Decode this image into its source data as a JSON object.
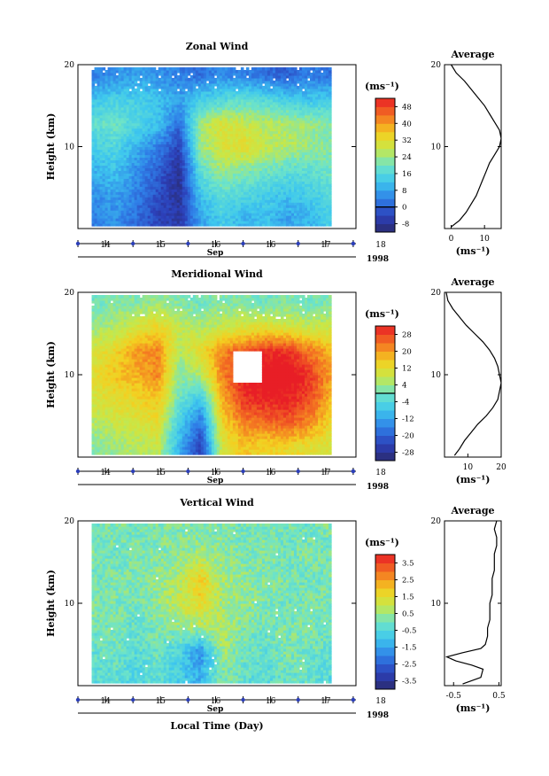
{
  "figure": {
    "x_axis_title": "Local Time (Day)",
    "x_month_label": "Sep",
    "year_label": "1998"
  },
  "chart_data": [
    {
      "type": "heatmap",
      "title": "Zonal Wind",
      "ylabel": "Height (km)",
      "ylim": [
        0,
        20
      ],
      "yticks": [
        {
          "v": 10,
          "t": "10"
        },
        {
          "v": 20,
          "t": "20"
        }
      ],
      "x_tick_labels": [
        "14",
        "15",
        "16",
        "16",
        "17",
        "18"
      ],
      "data_xlim": [
        13.75,
        18.1
      ],
      "colorbar_unit": "(ms⁻¹)",
      "colorbar_ticks": [
        "48",
        "40",
        "32",
        "24",
        "16",
        "8",
        "0",
        "-8"
      ],
      "colorbar_range": [
        -12,
        52
      ],
      "zero_line_value": 0,
      "field": {
        "base": 12,
        "rows": [
          {
            "h": 1,
            "v": [
              4,
              6,
              2,
              -4,
              -6,
              8,
              14,
              10,
              12,
              8,
              10,
              14
            ]
          },
          {
            "h": 4,
            "v": [
              6,
              8,
              4,
              -2,
              -8,
              12,
              18,
              16,
              14,
              12,
              14,
              16
            ]
          },
          {
            "h": 7,
            "v": [
              10,
              12,
              6,
              0,
              -8,
              18,
              24,
              22,
              20,
              18,
              18,
              20
            ]
          },
          {
            "h": 10,
            "v": [
              14,
              16,
              10,
              4,
              -4,
              24,
              30,
              32,
              28,
              26,
              24,
              22
            ]
          },
          {
            "h": 13,
            "v": [
              18,
              20,
              16,
              12,
              2,
              24,
              30,
              28,
              26,
              26,
              24,
              22
            ]
          },
          {
            "h": 16,
            "v": [
              12,
              14,
              14,
              12,
              8,
              14,
              16,
              18,
              16,
              14,
              12,
              14
            ]
          },
          {
            "h": 19,
            "v": [
              4,
              6,
              8,
              6,
              4,
              2,
              6,
              4,
              2,
              0,
              4,
              2
            ]
          }
        ]
      },
      "average_profile": {
        "title": "Average",
        "xlabel": "(ms⁻¹)",
        "xlim": [
          -2,
          15
        ],
        "xticks": [
          {
            "v": 0,
            "t": "0"
          },
          {
            "v": 10,
            "t": "10"
          }
        ],
        "ylim": [
          0,
          20
        ],
        "yticks": [
          {
            "v": 10,
            "t": "10"
          },
          {
            "v": 20,
            "t": "20"
          }
        ],
        "y": [
          0.2,
          1,
          2,
          3,
          4,
          5,
          6,
          7,
          8,
          9,
          10,
          11,
          12,
          13,
          14,
          15,
          16,
          17,
          18,
          19,
          20
        ],
        "x": [
          0,
          2.5,
          4.5,
          6,
          7.5,
          8.5,
          9.5,
          10.5,
          11.5,
          13,
          14.5,
          15,
          14.5,
          13,
          11.5,
          10,
          8,
          6,
          4,
          1.5,
          0
        ]
      }
    },
    {
      "type": "heatmap",
      "title": "Meridional Wind",
      "ylabel": "Height (km)",
      "ylim": [
        0,
        20
      ],
      "yticks": [
        {
          "v": 10,
          "t": "10"
        },
        {
          "v": 20,
          "t": "20"
        }
      ],
      "x_tick_labels": [
        "14",
        "15",
        "16",
        "16",
        "17",
        "18"
      ],
      "data_xlim": [
        13.75,
        18.1
      ],
      "colorbar_unit": "(ms⁻¹)",
      "colorbar_ticks": [
        "28",
        "20",
        "12",
        "4",
        "-4",
        "-12",
        "-20",
        "-28"
      ],
      "colorbar_range": [
        -32,
        32
      ],
      "zero_line_value": 0,
      "field": {
        "base": 4,
        "rows": [
          {
            "h": 1,
            "v": [
              2,
              4,
              6,
              8,
              -10,
              -24,
              10,
              16,
              14,
              14,
              12,
              10
            ]
          },
          {
            "h": 4,
            "v": [
              6,
              8,
              10,
              12,
              -6,
              -18,
              14,
              22,
              24,
              26,
              22,
              14
            ]
          },
          {
            "h": 7,
            "v": [
              10,
              12,
              14,
              16,
              0,
              -8,
              18,
              30,
              32,
              32,
              28,
              18
            ]
          },
          {
            "h": 10,
            "v": [
              12,
              16,
              18,
              22,
              2,
              6,
              22,
              32,
              36,
              36,
              30,
              20
            ]
          },
          {
            "h": 13,
            "v": [
              10,
              14,
              20,
              22,
              6,
              12,
              22,
              26,
              30,
              30,
              24,
              18
            ]
          },
          {
            "h": 16,
            "v": [
              4,
              6,
              10,
              14,
              8,
              6,
              8,
              10,
              12,
              10,
              8,
              8
            ]
          },
          {
            "h": 19,
            "v": [
              0,
              2,
              2,
              4,
              2,
              0,
              2,
              2,
              0,
              2,
              0,
              2
            ]
          }
        ]
      },
      "average_profile": {
        "title": "Average",
        "xlabel": "(ms⁻¹)",
        "xlim": [
          3,
          20
        ],
        "xticks": [
          {
            "v": 10,
            "t": "10"
          },
          {
            "v": 20,
            "t": "20"
          }
        ],
        "ylim": [
          0,
          20
        ],
        "yticks": [
          {
            "v": 10,
            "t": "10"
          },
          {
            "v": 20,
            "t": "20"
          }
        ],
        "y": [
          0.2,
          1,
          2,
          3,
          4,
          5,
          6,
          7,
          8,
          9,
          10,
          11,
          12,
          13,
          14,
          15,
          16,
          17,
          18,
          19,
          20
        ],
        "x": [
          6,
          7.5,
          9,
          11,
          13,
          15.5,
          17.5,
          19,
          19.5,
          20,
          19.5,
          19,
          18,
          16.5,
          14.5,
          12,
          9.5,
          7.5,
          5.5,
          4,
          3.5
        ]
      }
    },
    {
      "type": "heatmap",
      "title": "Vertical Wind",
      "ylabel": "Height (km)",
      "ylim": [
        0,
        20
      ],
      "yticks": [
        {
          "v": 10,
          "t": "10"
        },
        {
          "v": 20,
          "t": "20"
        }
      ],
      "x_tick_labels": [
        "14",
        "15",
        "16",
        "16",
        "17",
        "18"
      ],
      "data_xlim": [
        13.75,
        18.1
      ],
      "colorbar_unit": "(ms⁻¹)",
      "colorbar_ticks": [
        "3.5",
        "2.5",
        "1.5",
        "0.5",
        "-0.5",
        "-1.5",
        "-2.5",
        "-3.5"
      ],
      "colorbar_range": [
        -4,
        4
      ],
      "zero_line_value": null,
      "field": {
        "base": 0,
        "rows": [
          {
            "h": 1,
            "v": [
              -0.4,
              -0.2,
              -0.6,
              -0.2,
              -0.8,
              -1.2,
              0.2,
              -0.2,
              -0.4,
              0.0,
              -0.2,
              -0.4
            ]
          },
          {
            "h": 4,
            "v": [
              -0.2,
              0.0,
              -0.4,
              0.0,
              -0.6,
              -1.8,
              0.6,
              0.0,
              -0.2,
              0.2,
              0.0,
              -0.2
            ]
          },
          {
            "h": 7,
            "v": [
              0.0,
              0.2,
              -0.2,
              0.2,
              0.4,
              0.6,
              0.8,
              0.2,
              0.0,
              0.2,
              0.2,
              0.0
            ]
          },
          {
            "h": 10,
            "v": [
              0.2,
              0.2,
              0.0,
              0.4,
              1.0,
              1.6,
              0.6,
              0.4,
              0.2,
              0.0,
              0.2,
              0.0
            ]
          },
          {
            "h": 13,
            "v": [
              0.0,
              0.2,
              0.2,
              0.4,
              0.8,
              2.0,
              0.6,
              0.4,
              0.2,
              0.2,
              0.0,
              0.2
            ]
          },
          {
            "h": 16,
            "v": [
              0.2,
              0.0,
              0.2,
              0.2,
              0.4,
              0.6,
              0.4,
              0.2,
              0.2,
              0.0,
              0.2,
              0.0
            ]
          },
          {
            "h": 19,
            "v": [
              0.0,
              0.2,
              0.0,
              0.2,
              0.2,
              0.2,
              0.2,
              0.0,
              0.2,
              0.0,
              0.0,
              0.2
            ]
          }
        ]
      },
      "average_profile": {
        "title": "Average",
        "xlabel": "(ms⁻¹)",
        "xlim": [
          -0.7,
          0.55
        ],
        "xticks": [
          {
            "v": -0.5,
            "t": "-0.5"
          },
          {
            "v": 0.5,
            "t": "0.5"
          }
        ],
        "ylim": [
          0,
          20
        ],
        "yticks": [
          {
            "v": 10,
            "t": "10"
          },
          {
            "v": 20,
            "t": "20"
          }
        ],
        "y": [
          0.2,
          1,
          2,
          2.5,
          3,
          3.5,
          4,
          4.5,
          5,
          6,
          7,
          8,
          9,
          10,
          11,
          12,
          13,
          14,
          15,
          16,
          17,
          18,
          19,
          20
        ],
        "x": [
          -0.3,
          0.1,
          0.15,
          -0.1,
          -0.45,
          -0.65,
          -0.3,
          0.1,
          0.2,
          0.25,
          0.25,
          0.3,
          0.3,
          0.3,
          0.35,
          0.35,
          0.35,
          0.4,
          0.4,
          0.4,
          0.45,
          0.45,
          0.4,
          0.45
        ]
      }
    }
  ]
}
